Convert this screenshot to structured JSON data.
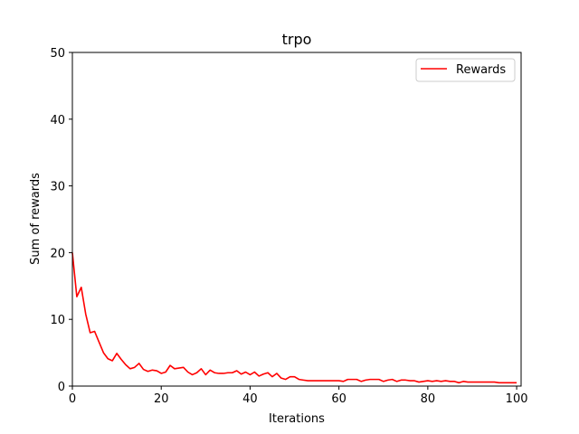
{
  "chart_data": {
    "type": "line",
    "title": "trpo",
    "xlabel": "Iterations",
    "ylabel": "Sum of rewards",
    "xlim": [
      0,
      101
    ],
    "ylim": [
      0,
      50
    ],
    "xticks": [
      0,
      20,
      40,
      60,
      80,
      100
    ],
    "yticks": [
      0,
      10,
      20,
      30,
      40,
      50
    ],
    "grid": false,
    "legend_position": "upper right",
    "series": [
      {
        "name": "Rewards",
        "color": "#ff0000",
        "x": [
          0,
          1,
          2,
          3,
          4,
          5,
          6,
          7,
          8,
          9,
          10,
          11,
          12,
          13,
          14,
          15,
          16,
          17,
          18,
          19,
          20,
          21,
          22,
          23,
          24,
          25,
          26,
          27,
          28,
          29,
          30,
          31,
          32,
          33,
          34,
          35,
          36,
          37,
          38,
          39,
          40,
          41,
          42,
          43,
          44,
          45,
          46,
          47,
          48,
          49,
          50,
          51,
          52,
          53,
          54,
          55,
          56,
          57,
          58,
          59,
          60,
          61,
          62,
          63,
          64,
          65,
          66,
          67,
          68,
          69,
          70,
          71,
          72,
          73,
          74,
          75,
          76,
          77,
          78,
          79,
          80,
          81,
          82,
          83,
          84,
          85,
          86,
          87,
          88,
          89,
          90,
          91,
          92,
          93,
          94,
          95,
          96,
          97,
          98,
          99,
          100
        ],
        "values": [
          20.0,
          13.4,
          14.8,
          10.8,
          8.0,
          8.2,
          6.6,
          5.0,
          4.1,
          3.8,
          4.9,
          4.0,
          3.2,
          2.6,
          2.8,
          3.4,
          2.5,
          2.2,
          2.4,
          2.3,
          1.9,
          2.1,
          3.1,
          2.6,
          2.7,
          2.8,
          2.1,
          1.7,
          2.0,
          2.6,
          1.7,
          2.4,
          2.0,
          1.9,
          1.9,
          2.0,
          2.0,
          2.3,
          1.8,
          2.1,
          1.7,
          2.1,
          1.5,
          1.8,
          2.0,
          1.4,
          1.9,
          1.2,
          1.0,
          1.4,
          1.4,
          1.0,
          0.9,
          0.8,
          0.8,
          0.8,
          0.8,
          0.8,
          0.8,
          0.8,
          0.8,
          0.7,
          1.0,
          1.0,
          1.0,
          0.7,
          0.9,
          1.0,
          1.0,
          1.0,
          0.7,
          0.9,
          1.0,
          0.7,
          0.9,
          0.9,
          0.8,
          0.8,
          0.6,
          0.7,
          0.8,
          0.7,
          0.8,
          0.7,
          0.8,
          0.7,
          0.7,
          0.5,
          0.7,
          0.6,
          0.6,
          0.6,
          0.6,
          0.6,
          0.6,
          0.6,
          0.5,
          0.5,
          0.5,
          0.5,
          0.5
        ]
      }
    ]
  }
}
